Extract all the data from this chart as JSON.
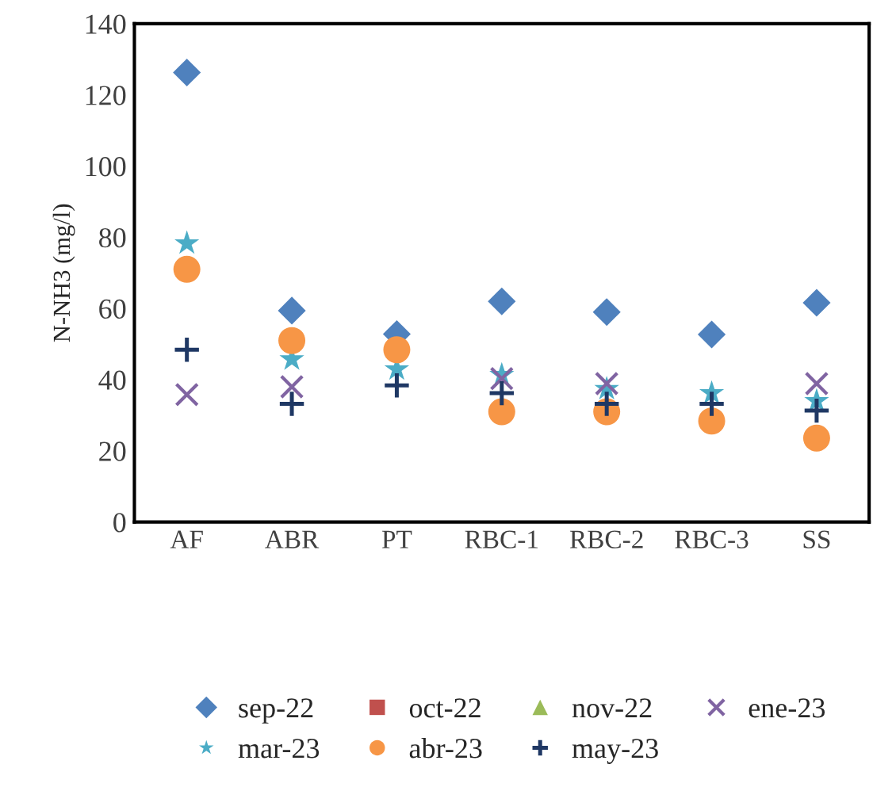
{
  "chart_data": {
    "type": "scatter",
    "ylabel": "N-NH3 (mg/l)",
    "categories": [
      "AF",
      "ABR",
      "PT",
      "RBC-1",
      "RBC-2",
      "RBC-3",
      "SS"
    ],
    "ylim": [
      0,
      140
    ],
    "yticks": [
      0,
      20,
      40,
      60,
      80,
      100,
      120,
      140
    ],
    "grid": false,
    "legend": "bottom",
    "series": [
      {
        "name": "sep-22",
        "color": "#4f81bd",
        "marker": "diamond",
        "values": [
          126.3,
          59.4,
          52.8,
          62.0,
          59.0,
          52.7,
          61.6
        ]
      },
      {
        "name": "oct-22",
        "color": "#c0504d",
        "marker": "square",
        "values": [
          null,
          null,
          null,
          null,
          null,
          null,
          null
        ]
      },
      {
        "name": "nov-22",
        "color": "#9bbb59",
        "marker": "triangle",
        "values": [
          null,
          null,
          null,
          null,
          null,
          null,
          null
        ]
      },
      {
        "name": "ene-23",
        "color": "#8064a2",
        "marker": "x",
        "values": [
          35.8,
          38.0,
          null,
          40.3,
          38.9,
          null,
          38.9
        ]
      },
      {
        "name": "mar-23",
        "color": "#4bacc6",
        "marker": "star",
        "values": [
          78.3,
          45.7,
          42.9,
          41.3,
          37.4,
          36.2,
          34.0
        ]
      },
      {
        "name": "abr-23",
        "color": "#f79646",
        "marker": "circle",
        "values": [
          71.0,
          51.0,
          48.4,
          31.0,
          31.0,
          28.4,
          23.6
        ]
      },
      {
        "name": "may-23",
        "color": "#1f3864",
        "marker": "cross",
        "values": [
          48.4,
          33.2,
          38.4,
          36.2,
          33.2,
          33.2,
          31.3
        ]
      }
    ]
  }
}
